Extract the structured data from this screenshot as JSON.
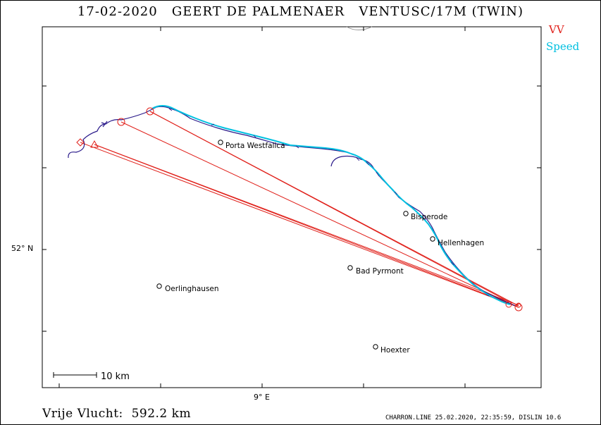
{
  "title": "17-02-2020   GEERT DE PALMENAER   VENTUSC/17M (TWIN)",
  "legend": {
    "vv_label": "VV",
    "vv_color": "#e0201a",
    "speed_label": "Speed",
    "speed_color": "#00c0e0"
  },
  "axes": {
    "lat_label": "52° N",
    "lon_label": "9° E"
  },
  "places": [
    {
      "name": "Porta Westfalica"
    },
    {
      "name": "Bisperode"
    },
    {
      "name": "Hellenhagen"
    },
    {
      "name": "Bad Pyrmont"
    },
    {
      "name": "Oerlinghausen"
    },
    {
      "name": "Hoexter"
    }
  ],
  "scale": {
    "label": "10 km"
  },
  "footer": {
    "distance": "Vrije Vlucht:  592.2 km",
    "credit": "CHARRON.LINE 25.02.2020, 22:35:59, DISLIN 10.6"
  },
  "colors": {
    "track": "#2a1a8a",
    "triangle": "#e0201a",
    "speed": "#00c0e0"
  }
}
